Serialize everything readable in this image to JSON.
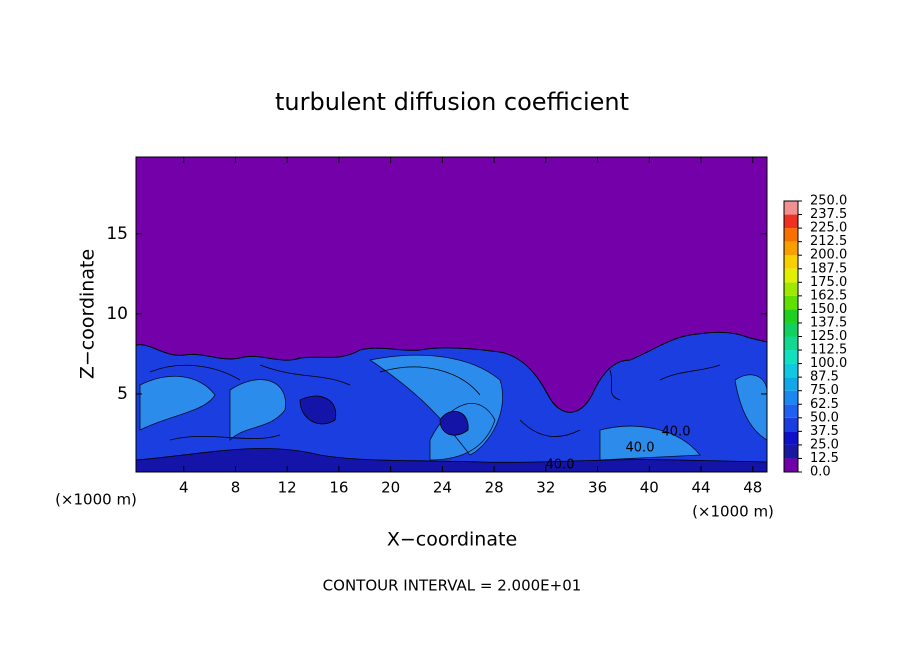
{
  "chart_data": {
    "type": "contour",
    "title": "turbulent diffusion coefficient",
    "x_label": "X−coordinate",
    "y_label": "Z−coordinate",
    "x_unit": "(×1000 m)",
    "y_unit": "(×1000 m)",
    "footer": "CONTOUR INTERVAL = 2.000E+01",
    "xlim": [
      0,
      49.1
    ],
    "xticks": [
      4,
      8,
      12,
      16,
      20,
      24,
      28,
      32,
      36,
      40,
      44,
      48
    ],
    "ylim": [
      0,
      19.8
    ],
    "yticks": [
      5,
      10,
      15
    ],
    "contour_labels": [
      "40.0",
      "40.0",
      "40.0"
    ],
    "colorbar": {
      "ticks": [
        {
          "value": 0,
          "label": "0.0"
        },
        12.5,
        {
          "value": 25,
          "label": "25.0"
        },
        37.5,
        {
          "value": 50,
          "label": "50.0"
        },
        62.5,
        {
          "value": 75,
          "label": "75.0"
        },
        87.5,
        {
          "value": 100,
          "label": "100.0"
        },
        112.5,
        {
          "value": 125,
          "label": "125.0"
        },
        137.5,
        {
          "value": 150,
          "label": "150.0"
        },
        162.5,
        {
          "value": 175,
          "label": "175.0"
        },
        187.5,
        {
          "value": 200,
          "label": "200.0"
        },
        212.5,
        {
          "value": 225,
          "label": "225.0"
        },
        237.5,
        {
          "value": 250,
          "label": "250.0"
        }
      ],
      "colors": [
        "#7000a8",
        "#1818a0",
        "#1010c8",
        "#1a3de0",
        "#2060f0",
        "#1a88f0",
        "#10a8e8",
        "#10c8e0",
        "#10e0c0",
        "#10d890",
        "#10d060",
        "#20d020",
        "#60e000",
        "#a0e800",
        "#e0f000",
        "#f8d000",
        "#f8a000",
        "#f87000",
        "#f03020",
        "#f09090"
      ]
    }
  }
}
